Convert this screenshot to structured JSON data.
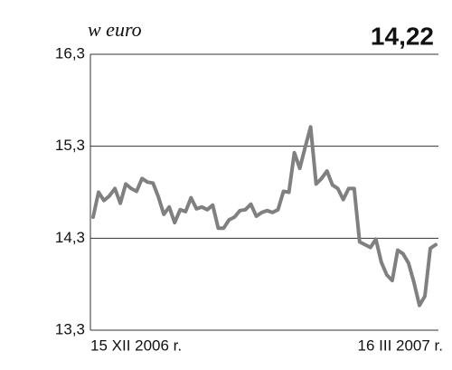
{
  "chart_data": {
    "type": "line",
    "y_label": "w euro",
    "headline": "14,22",
    "categories": [
      "15 XII 2006 r.",
      null,
      null,
      null,
      null,
      null,
      null,
      null,
      null,
      null,
      null,
      null,
      null,
      null,
      null,
      null,
      null,
      null,
      null,
      null,
      null,
      null,
      null,
      null,
      null,
      null,
      null,
      null,
      null,
      null,
      null,
      null,
      null,
      null,
      null,
      null,
      null,
      null,
      null,
      null,
      null,
      null,
      null,
      null,
      null,
      null,
      null,
      null,
      null,
      null,
      null,
      null,
      null,
      null,
      null,
      null,
      null,
      null,
      null,
      null,
      null,
      null,
      null,
      "16 III 2007 r."
    ],
    "values": [
      14.53,
      14.8,
      14.71,
      14.76,
      14.84,
      14.68,
      14.89,
      14.84,
      14.81,
      14.95,
      14.91,
      14.9,
      14.75,
      14.56,
      14.64,
      14.47,
      14.61,
      14.59,
      14.74,
      14.62,
      14.64,
      14.61,
      14.66,
      14.41,
      14.41,
      14.5,
      14.53,
      14.6,
      14.61,
      14.67,
      14.54,
      14.58,
      14.6,
      14.58,
      14.61,
      14.81,
      14.8,
      15.23,
      15.06,
      15.29,
      15.51,
      14.89,
      14.95,
      15.03,
      14.88,
      14.84,
      14.72,
      14.84,
      14.84,
      14.26,
      14.23,
      14.2,
      14.29,
      14.04,
      13.9,
      13.84,
      14.17,
      14.13,
      14.03,
      13.82,
      13.57,
      13.67,
      14.19,
      14.23
    ],
    "color": "#808080",
    "ylim": [
      13.3,
      16.3
    ],
    "yticks": [
      {
        "value": 13.3,
        "label": "13,3"
      },
      {
        "value": 14.3,
        "label": "14,3"
      },
      {
        "value": 15.3,
        "label": "15,3"
      },
      {
        "value": 16.3,
        "label": "16,3"
      }
    ],
    "grid": true
  }
}
